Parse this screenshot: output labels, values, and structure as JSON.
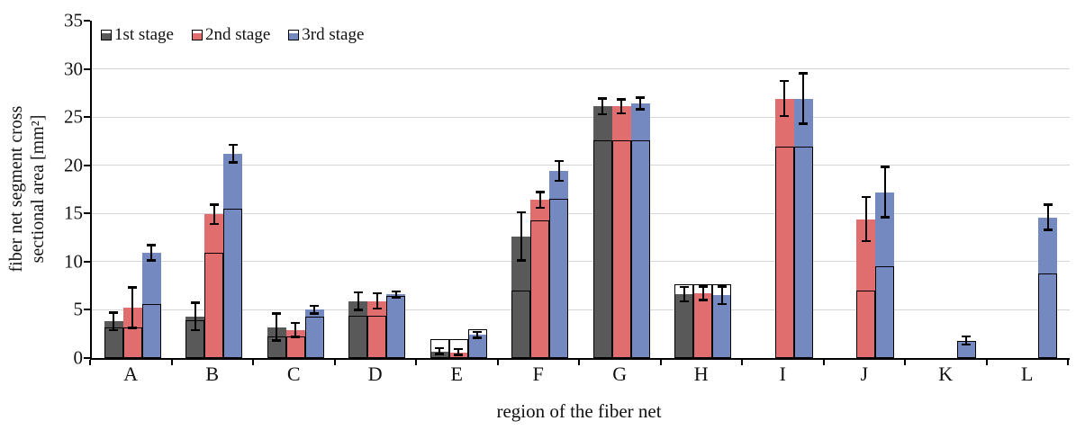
{
  "figure": {
    "background": "#ffffff",
    "axis_color": "#000000",
    "gridline_color": "#d6d6d6",
    "error_bar_color": "#000000"
  },
  "chart_data": {
    "type": "bar",
    "title": "",
    "xlabel": "region of the fiber net",
    "ylabel": "fiber net segment cross sectional area [mm²]",
    "ylabel_lines": [
      "fiber net segment cross",
      "sectional area [mm²]"
    ],
    "ylim": [
      0,
      35
    ],
    "yticks": [
      0,
      5,
      10,
      15,
      20,
      25,
      30,
      35
    ],
    "grid": true,
    "legend_position": "top-left inside plot",
    "categories": [
      "A",
      "B",
      "C",
      "D",
      "E",
      "F",
      "G",
      "H",
      "I",
      "J",
      "K",
      "L"
    ],
    "bar_style_note": "Each bar = solid colored fill to the mean value, a black open outline box to a secondary value, and black error bars centered on the fill top. Missing bars (null) leave empty slots.",
    "series": [
      {
        "name": "1st stage",
        "color": "#595959",
        "values": [
          3.8,
          4.3,
          3.2,
          5.9,
          0.7,
          12.6,
          26.1,
          6.6,
          null,
          null,
          null,
          null
        ],
        "outline_values": [
          3.2,
          3.9,
          2.2,
          4.4,
          2.0,
          7.0,
          22.6,
          7.7,
          null,
          null,
          null,
          null
        ],
        "errors": [
          1.0,
          1.5,
          1.5,
          1.0,
          0.4,
          2.6,
          0.9,
          0.85,
          null,
          null,
          null,
          null
        ]
      },
      {
        "name": "2nd stage",
        "color": "#E06E6E",
        "values": [
          5.2,
          14.9,
          2.9,
          5.9,
          0.6,
          16.4,
          26.1,
          6.7,
          26.9,
          14.4,
          null,
          null
        ],
        "outline_values": [
          3.2,
          10.9,
          2.2,
          4.4,
          2.0,
          14.3,
          22.6,
          7.7,
          21.9,
          7.0,
          null,
          null
        ],
        "errors": [
          2.2,
          1.1,
          0.8,
          0.9,
          0.4,
          0.9,
          0.8,
          0.8,
          1.9,
          2.4,
          null,
          null
        ]
      },
      {
        "name": "3rd stage",
        "color": "#7389C0",
        "values": [
          10.9,
          21.2,
          5.0,
          6.6,
          2.4,
          19.4,
          26.4,
          6.5,
          26.9,
          17.2,
          1.8,
          14.6
        ],
        "outline_values": [
          5.6,
          15.5,
          4.3,
          6.4,
          3.0,
          16.5,
          22.6,
          7.7,
          21.9,
          9.5,
          1.8,
          8.8
        ],
        "errors": [
          0.9,
          1.0,
          0.5,
          0.4,
          0.4,
          1.1,
          0.7,
          1.0,
          2.7,
          2.7,
          0.5,
          1.4
        ]
      }
    ]
  }
}
